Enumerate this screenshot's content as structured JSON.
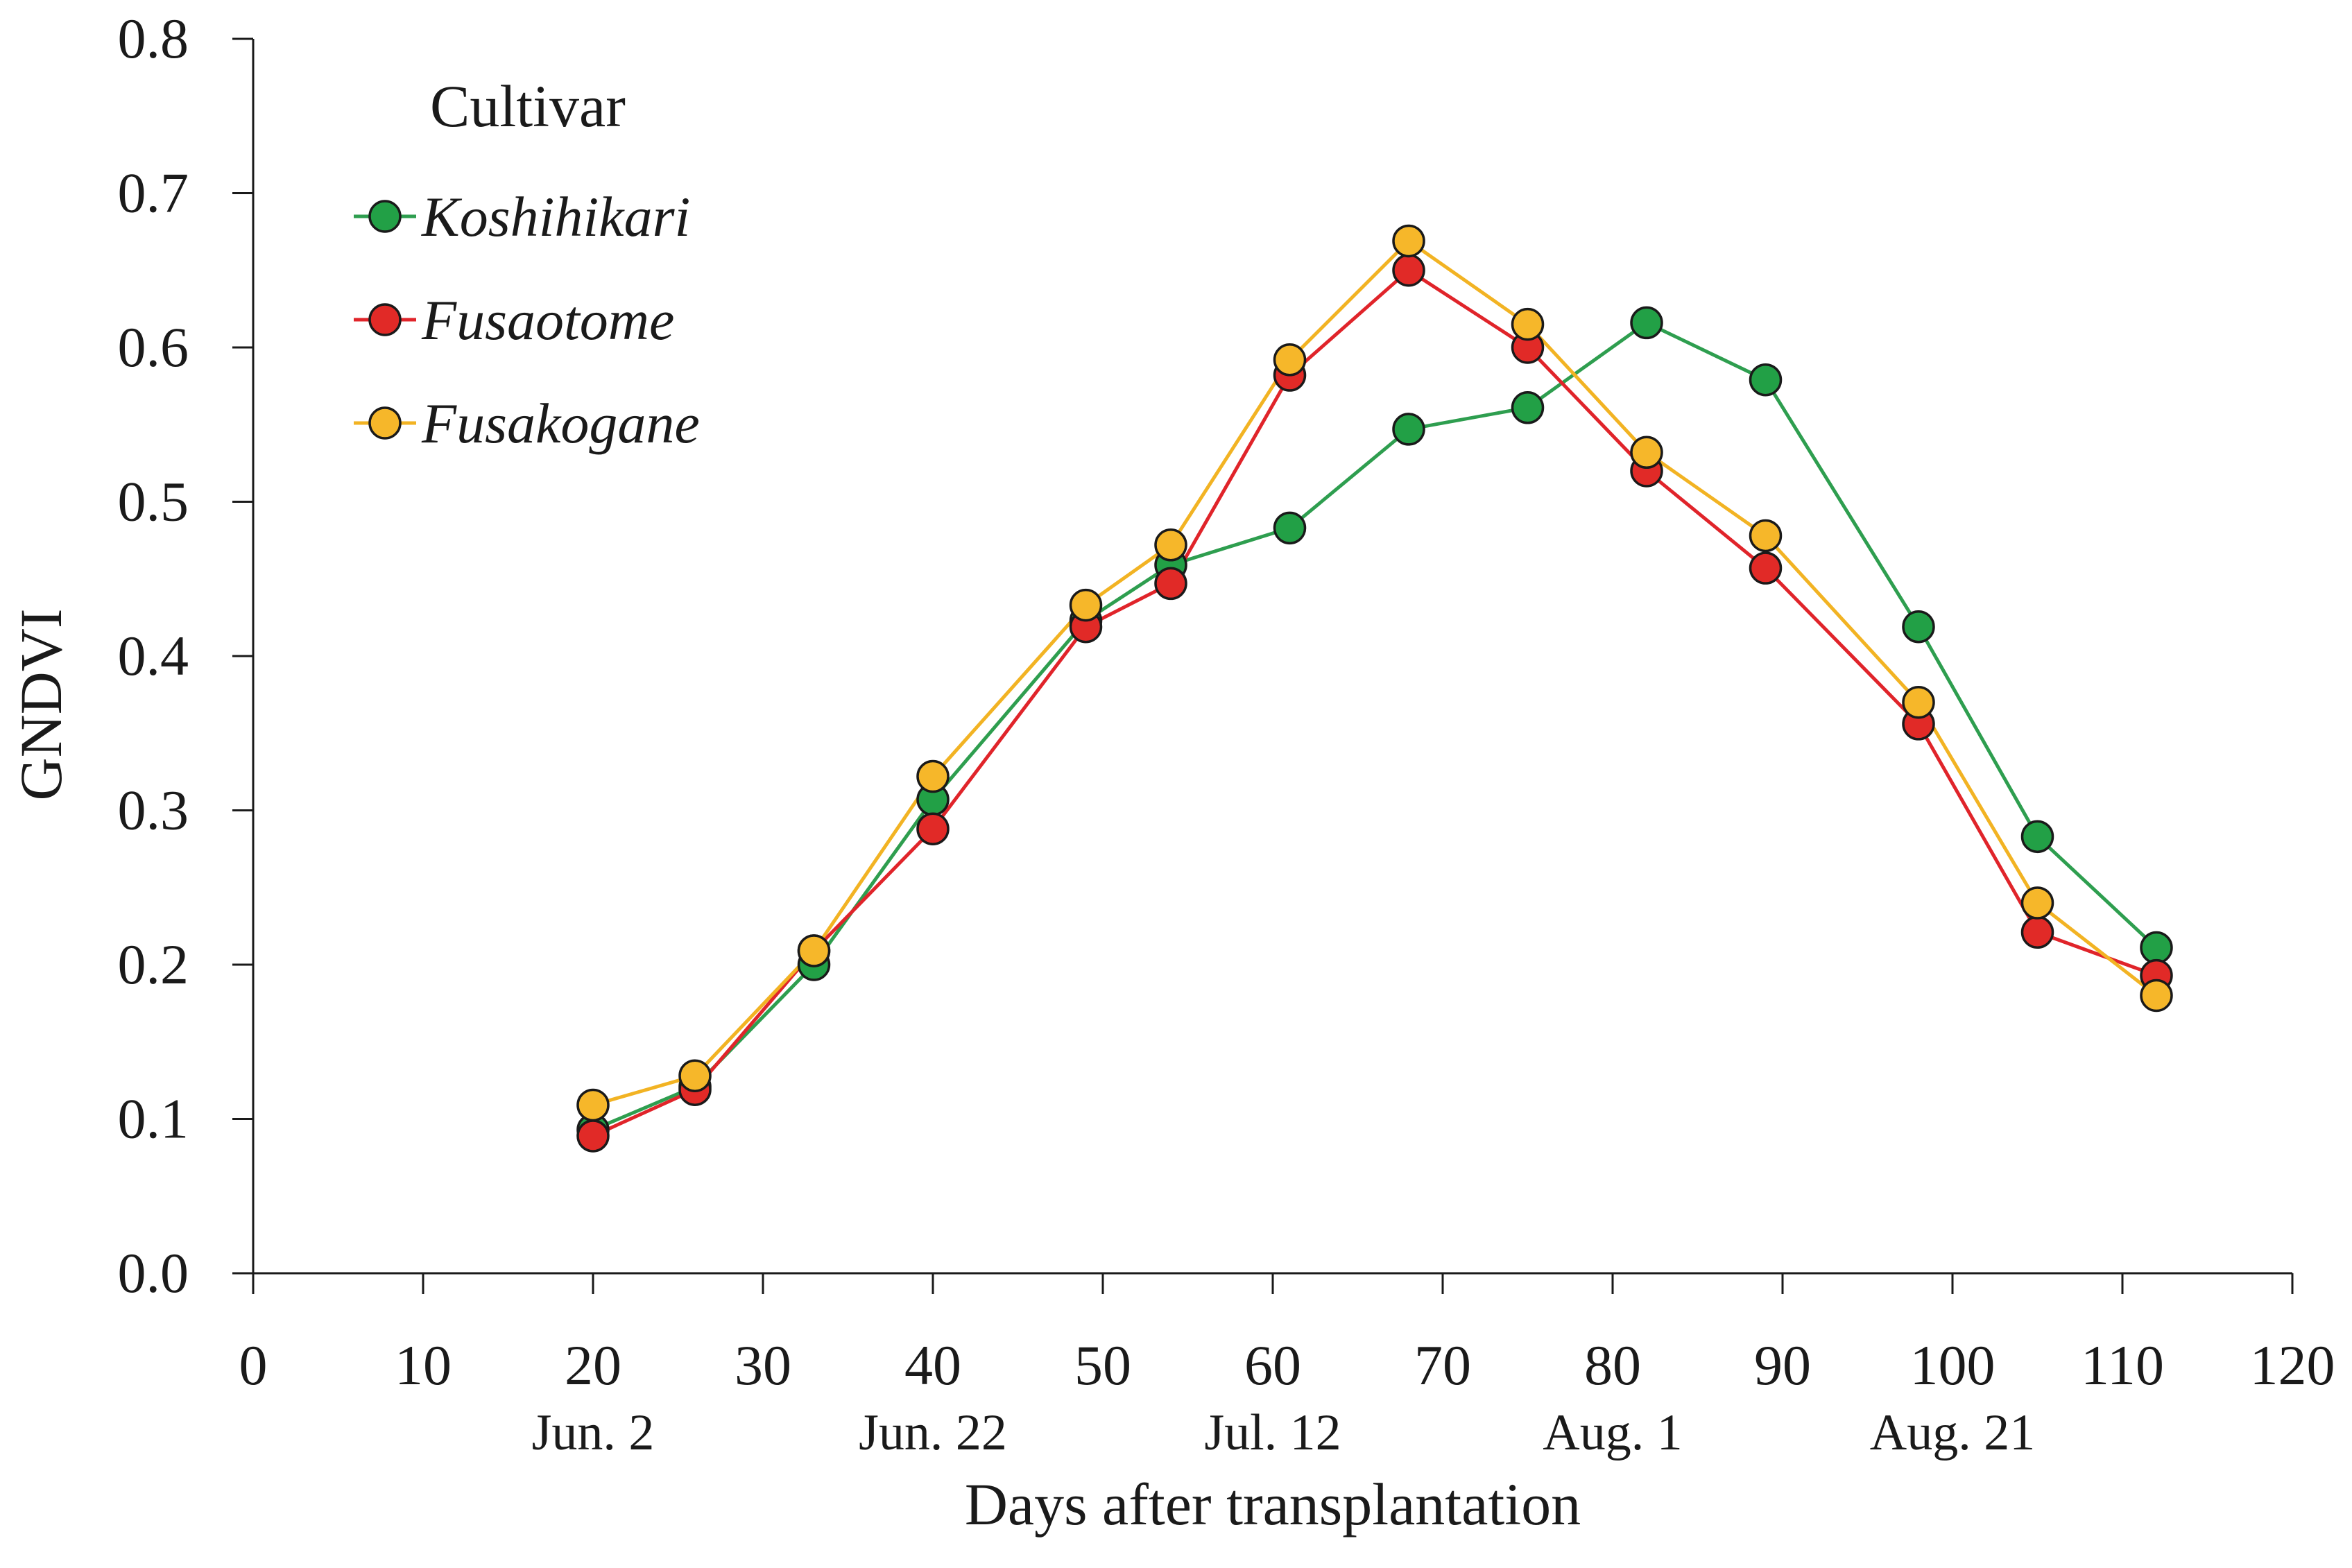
{
  "chart_data": {
    "type": "line",
    "title": "",
    "xlabel": "Days after transplantation",
    "ylabel": "GNDVI",
    "xlim": [
      0,
      120
    ],
    "ylim": [
      0.0,
      0.8
    ],
    "x_ticks": [
      0,
      10,
      20,
      30,
      40,
      50,
      60,
      70,
      80,
      90,
      100,
      110,
      120
    ],
    "x_tick_labels": [
      "0",
      "10",
      "20",
      "30",
      "40",
      "50",
      "60",
      "70",
      "80",
      "90",
      "100",
      "110",
      "120"
    ],
    "y_ticks": [
      0.0,
      0.1,
      0.2,
      0.3,
      0.4,
      0.5,
      0.6,
      0.7,
      0.8
    ],
    "y_tick_labels": [
      "0.0",
      "0.1",
      "0.2",
      "0.3",
      "0.4",
      "0.5",
      "0.6",
      "0.7",
      "0.8"
    ],
    "date_labels": [
      {
        "x": 20,
        "text": "Jun. 2"
      },
      {
        "x": 40,
        "text": "Jun. 22"
      },
      {
        "x": 60,
        "text": "Jul. 12"
      },
      {
        "x": 80,
        "text": "Aug. 1"
      },
      {
        "x": 100,
        "text": "Aug. 21"
      }
    ],
    "grid": false,
    "legend": {
      "title": "Cultivar",
      "position": "top-left"
    },
    "series": [
      {
        "name": "Koshihikari",
        "color": "#2e9e4f",
        "marker_fill": "#22a046",
        "x": [
          20,
          26,
          33,
          40,
          49,
          54,
          61,
          68,
          75,
          82,
          89,
          98,
          105,
          112
        ],
        "values": [
          0.093,
          0.121,
          0.2,
          0.307,
          0.423,
          0.459,
          0.483,
          0.547,
          0.561,
          0.616,
          0.579,
          0.419,
          0.283,
          0.211
        ]
      },
      {
        "name": "Fusaotome",
        "color": "#e0242a",
        "marker_fill": "#e12a27",
        "x": [
          20,
          26,
          33,
          40,
          49,
          54,
          61,
          68,
          75,
          82,
          89,
          98,
          105,
          112
        ],
        "values": [
          0.089,
          0.119,
          0.209,
          0.288,
          0.419,
          0.447,
          0.582,
          0.65,
          0.6,
          0.52,
          0.457,
          0.356,
          0.221,
          0.193
        ]
      },
      {
        "name": "Fusakogane",
        "color": "#f2b323",
        "marker_fill": "#f6b72a",
        "x": [
          20,
          26,
          33,
          40,
          49,
          54,
          61,
          68,
          75,
          82,
          89,
          98,
          105,
          112
        ],
        "values": [
          0.109,
          0.128,
          0.209,
          0.322,
          0.433,
          0.472,
          0.592,
          0.669,
          0.615,
          0.532,
          0.478,
          0.37,
          0.24,
          0.18
        ]
      }
    ]
  }
}
